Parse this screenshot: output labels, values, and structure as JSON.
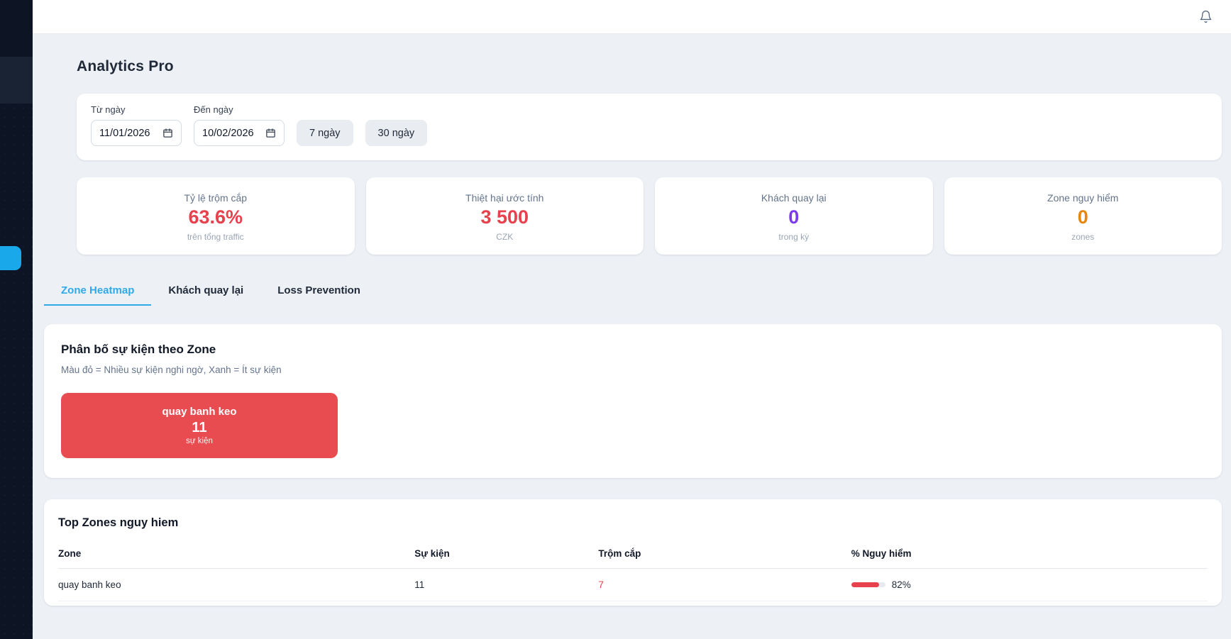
{
  "app": {
    "title": "Analytics Pro"
  },
  "topbar": {
    "bell_icon": "notification-bell"
  },
  "filters": {
    "from": {
      "label": "Từ ngày",
      "value": "11/01/2026"
    },
    "to": {
      "label": "Đến ngày",
      "value": "10/02/2026"
    },
    "quick_ranges": {
      "0": "7 ngày",
      "1": "30 ngày"
    }
  },
  "stats": [
    {
      "label": "Tỷ lệ trộm cắp",
      "value": "63.6%",
      "sub": "trên tổng traffic",
      "color": "#e8414e"
    },
    {
      "label": "Thiệt hại ước tính",
      "value": "3 500",
      "sub": "CZK",
      "color": "#e8414e"
    },
    {
      "label": "Khách quay lại",
      "value": "0",
      "sub": "trong kỳ",
      "color": "#7c3aed"
    },
    {
      "label": "Zone nguy hiểm",
      "value": "0",
      "sub": "zones",
      "color": "#e5860f"
    }
  ],
  "tabs": [
    {
      "label": "Zone Heatmap",
      "active": true
    },
    {
      "label": "Khách quay lại",
      "active": false
    },
    {
      "label": "Loss Prevention",
      "active": false
    }
  ],
  "heatmap": {
    "title": "Phân bố sự kiện theo Zone",
    "legend": "Màu đỏ = Nhiều sự kiện nghi ngờ, Xanh = Ít sự kiện",
    "zones": [
      {
        "name": "quay banh keo",
        "count": "11",
        "unit": "sự kiện",
        "color": "#e84c50"
      }
    ]
  },
  "top_zones": {
    "title": "Top Zones nguy hiem",
    "columns": [
      "Zone",
      "Sự kiện",
      "Trộm cắp",
      "% Nguy hiểm"
    ],
    "rows": [
      {
        "zone": "quay banh keo",
        "events": "11",
        "thefts": "7",
        "risk_label": "82%",
        "risk_value": 82
      }
    ]
  },
  "colors": {
    "accent_blue": "#2ea9e9",
    "sidebar_bg": "#0d1524",
    "sidebar_tab": "#19a9ea",
    "danger_red": "#e8414e",
    "page_bg": "#edf1f6"
  }
}
